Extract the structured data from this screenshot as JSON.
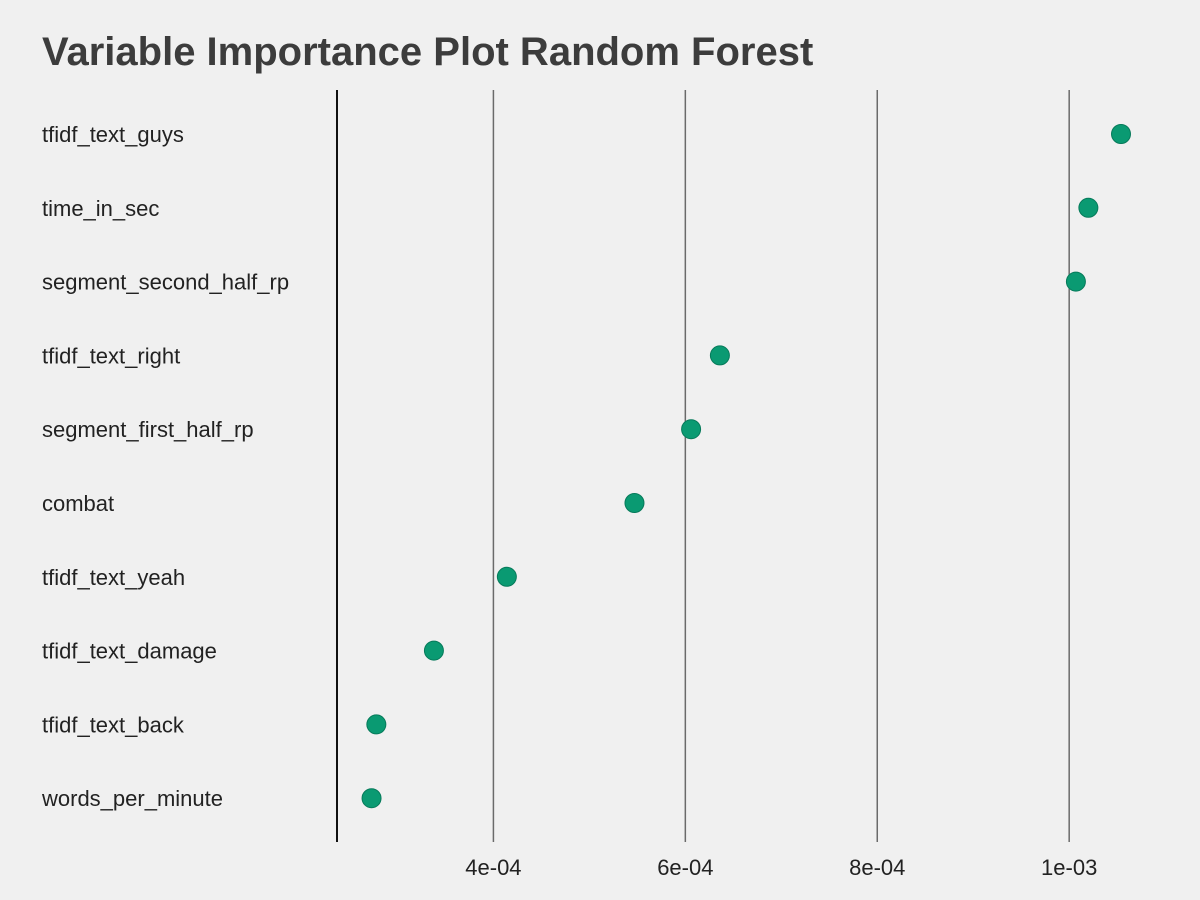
{
  "chart_data": {
    "type": "scatter",
    "title": "Variable Importance Plot Random Forest",
    "xlabel": "",
    "ylabel": "",
    "categories": [
      "tfidf_text_guys",
      "time_in_sec",
      "segment_second_half_rp",
      "tfidf_text_right",
      "segment_first_half_rp",
      "combat",
      "tfidf_text_yeah",
      "tfidf_text_damage",
      "tfidf_text_back",
      "words_per_minute"
    ],
    "values": [
      0.001054,
      0.00102,
      0.001007,
      0.000636,
      0.000606,
      0.000547,
      0.000414,
      0.000338,
      0.000278,
      0.000273
    ],
    "x_ticks": [
      {
        "value": 0.0004,
        "label": "4e-04"
      },
      {
        "value": 0.0006,
        "label": "6e-04"
      },
      {
        "value": 0.0008,
        "label": "8e-04"
      },
      {
        "value": 0.001,
        "label": "1e-03"
      }
    ],
    "xlim": [
      0.000237,
      0.001054
    ],
    "grid": "vertical",
    "point_color": "#0a9a72",
    "background_color": "#f0f0f0"
  }
}
